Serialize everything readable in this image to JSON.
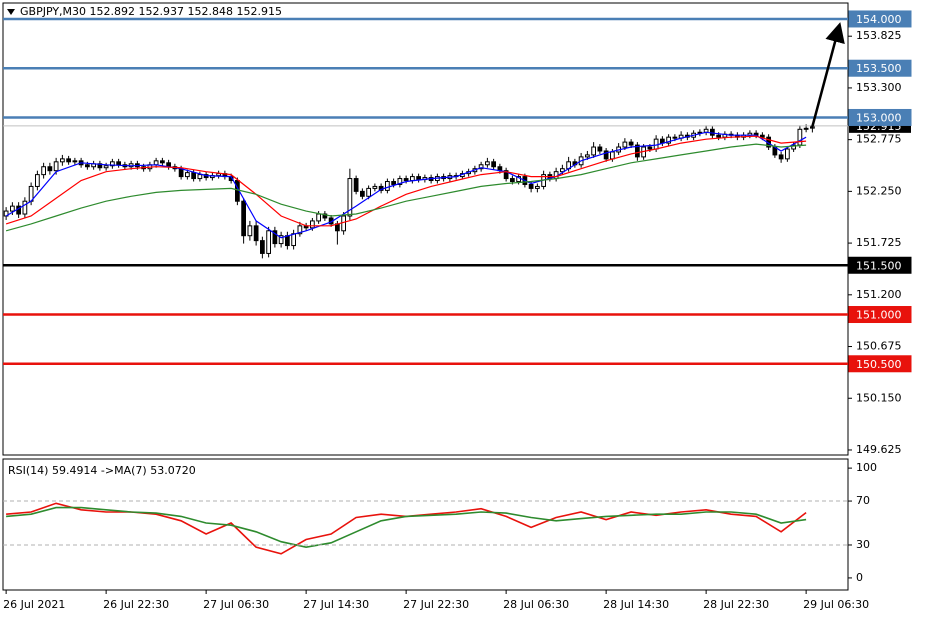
{
  "chart_data": [
    {
      "type": "candlestick",
      "title": "GBPJPY,M30  152.892 152.937 152.848 152.915",
      "xlim": [
        -0.5,
        134.7
      ],
      "ylim": [
        149.574,
        154.162
      ],
      "yticks": [
        153.825,
        {
          "value": 153.3,
          "label": "153.300"
        },
        152.775,
        {
          "value": 152.25,
          "label": "152.250"
        },
        151.725,
        {
          "value": 151.2,
          "label": "151.200"
        },
        150.675,
        {
          "value": 150.15,
          "label": "150.150"
        },
        149.625
      ],
      "open": [
        152.0,
        152.05,
        152.1,
        152.02,
        152.15,
        152.3,
        152.42,
        152.5,
        152.46,
        152.55,
        152.58,
        152.55,
        152.56,
        152.52,
        152.5,
        152.53,
        152.49,
        152.51,
        152.55,
        152.52,
        152.5,
        152.53,
        152.5,
        152.48,
        152.52,
        152.56,
        152.54,
        152.5,
        152.48,
        152.4,
        152.44,
        152.38,
        152.42,
        152.39,
        152.41,
        152.43,
        152.4,
        152.36,
        152.15,
        151.8,
        151.9,
        151.75,
        151.62,
        151.85,
        151.72,
        151.8,
        151.7,
        151.82,
        151.9,
        151.88,
        151.95,
        152.02,
        151.98,
        151.92,
        151.85,
        152.0,
        152.38,
        152.25,
        152.2,
        152.28,
        152.3,
        152.26,
        152.35,
        152.32,
        152.38,
        152.36,
        152.4,
        152.37,
        152.39,
        152.36,
        152.4,
        152.38,
        152.41,
        152.4,
        152.43,
        152.45,
        152.48,
        152.52,
        152.55,
        152.5,
        152.46,
        152.38,
        152.35,
        152.4,
        152.32,
        152.28,
        152.3,
        152.42,
        152.38,
        152.45,
        152.48,
        152.55,
        152.52,
        152.6,
        152.62,
        152.7,
        152.66,
        152.58,
        152.65,
        152.7,
        152.75,
        152.72,
        152.6,
        152.7,
        152.68,
        152.78,
        152.74,
        152.8,
        152.79,
        152.82,
        152.8,
        152.84,
        152.85,
        152.88,
        152.82,
        152.8,
        152.83,
        152.82,
        152.8,
        152.82,
        152.84,
        152.82,
        152.8,
        152.7,
        152.62,
        152.58,
        152.68,
        152.72,
        152.88,
        152.892
      ],
      "high": [
        152.09,
        152.14,
        152.14,
        152.19,
        152.34,
        152.46,
        152.54,
        152.54,
        152.59,
        152.62,
        152.61,
        152.59,
        152.59,
        152.55,
        152.56,
        152.56,
        152.54,
        152.58,
        152.58,
        152.55,
        152.56,
        152.56,
        152.53,
        152.55,
        152.59,
        152.59,
        152.57,
        152.53,
        152.51,
        152.47,
        152.47,
        152.45,
        152.45,
        152.44,
        152.46,
        152.46,
        152.43,
        152.39,
        152.18,
        151.95,
        151.95,
        151.79,
        151.89,
        151.89,
        151.84,
        151.84,
        151.86,
        151.94,
        151.93,
        151.98,
        152.05,
        152.05,
        152.01,
        151.95,
        152.04,
        152.48,
        152.41,
        152.28,
        152.31,
        152.33,
        152.33,
        152.38,
        152.38,
        152.41,
        152.41,
        152.43,
        152.43,
        152.42,
        152.42,
        152.43,
        152.43,
        152.44,
        152.44,
        152.46,
        152.48,
        152.51,
        152.55,
        152.59,
        152.58,
        152.53,
        152.49,
        152.41,
        152.43,
        152.43,
        152.35,
        152.33,
        152.46,
        152.45,
        152.49,
        152.52,
        152.6,
        152.58,
        152.64,
        152.66,
        152.75,
        152.73,
        152.69,
        152.68,
        152.74,
        152.79,
        152.78,
        152.75,
        152.73,
        152.73,
        152.82,
        152.81,
        152.83,
        152.83,
        152.86,
        152.85,
        152.87,
        152.88,
        152.92,
        152.91,
        152.85,
        152.86,
        152.86,
        152.85,
        152.85,
        152.87,
        152.87,
        152.85,
        152.83,
        152.73,
        152.65,
        152.71,
        152.75,
        152.92,
        152.93,
        152.937
      ],
      "low": [
        151.96,
        152.01,
        151.98,
        151.98,
        152.11,
        152.26,
        152.38,
        152.42,
        152.42,
        152.51,
        152.52,
        152.52,
        152.49,
        152.47,
        152.47,
        152.46,
        152.46,
        152.48,
        152.49,
        152.47,
        152.47,
        152.47,
        152.45,
        152.45,
        152.49,
        152.51,
        152.47,
        152.45,
        152.37,
        152.37,
        152.35,
        152.35,
        152.36,
        152.36,
        152.38,
        152.37,
        152.33,
        152.11,
        151.72,
        151.75,
        151.7,
        151.57,
        151.58,
        151.68,
        151.68,
        151.66,
        151.66,
        151.79,
        151.85,
        151.85,
        151.92,
        151.95,
        151.89,
        151.71,
        151.81,
        151.96,
        152.22,
        152.17,
        152.17,
        152.25,
        152.23,
        152.23,
        152.29,
        152.29,
        152.33,
        152.33,
        152.34,
        152.34,
        152.33,
        152.33,
        152.35,
        152.35,
        152.37,
        152.37,
        152.4,
        152.42,
        152.45,
        152.49,
        152.47,
        152.43,
        152.35,
        152.32,
        152.32,
        152.29,
        152.24,
        152.24,
        152.27,
        152.35,
        152.35,
        152.42,
        152.45,
        152.49,
        152.49,
        152.57,
        152.59,
        152.63,
        152.55,
        152.55,
        152.62,
        152.67,
        152.69,
        152.56,
        152.57,
        152.65,
        152.65,
        152.71,
        152.71,
        152.76,
        152.76,
        152.77,
        152.77,
        152.81,
        152.82,
        152.79,
        152.77,
        152.77,
        152.79,
        152.77,
        152.77,
        152.79,
        152.79,
        152.77,
        152.67,
        152.59,
        152.54,
        152.55,
        152.65,
        152.69,
        152.85,
        152.848
      ],
      "close": [
        152.05,
        152.1,
        152.02,
        152.15,
        152.3,
        152.42,
        152.5,
        152.46,
        152.55,
        152.58,
        152.55,
        152.56,
        152.52,
        152.5,
        152.53,
        152.49,
        152.51,
        152.55,
        152.52,
        152.5,
        152.53,
        152.5,
        152.48,
        152.52,
        152.56,
        152.54,
        152.5,
        152.48,
        152.4,
        152.44,
        152.38,
        152.42,
        152.39,
        152.41,
        152.43,
        152.4,
        152.36,
        152.15,
        151.8,
        151.9,
        151.75,
        151.62,
        151.85,
        151.72,
        151.8,
        151.7,
        151.82,
        151.9,
        151.88,
        151.95,
        152.02,
        151.98,
        151.92,
        151.85,
        152.0,
        152.38,
        152.25,
        152.2,
        152.28,
        152.3,
        152.26,
        152.35,
        152.32,
        152.38,
        152.36,
        152.4,
        152.37,
        152.39,
        152.36,
        152.4,
        152.38,
        152.41,
        152.4,
        152.43,
        152.45,
        152.48,
        152.52,
        152.55,
        152.5,
        152.46,
        152.38,
        152.35,
        152.4,
        152.32,
        152.28,
        152.3,
        152.42,
        152.38,
        152.45,
        152.48,
        152.55,
        152.52,
        152.6,
        152.62,
        152.7,
        152.66,
        152.58,
        152.65,
        152.7,
        152.75,
        152.72,
        152.6,
        152.7,
        152.68,
        152.78,
        152.74,
        152.8,
        152.79,
        152.82,
        152.8,
        152.84,
        152.85,
        152.88,
        152.82,
        152.8,
        152.83,
        152.82,
        152.8,
        152.82,
        152.84,
        152.82,
        152.8,
        152.7,
        152.62,
        152.58,
        152.68,
        152.72,
        152.88,
        152.89,
        152.915
      ],
      "up_color": "#ffffff",
      "down_color": "#000000",
      "series": [
        {
          "color": "#0000ff",
          "x": [
            0,
            4,
            8,
            12,
            16,
            20,
            24,
            28,
            32,
            36,
            40,
            44,
            48,
            52,
            56,
            60,
            64,
            68,
            72,
            76,
            80,
            84,
            88,
            92,
            96,
            100,
            104,
            108,
            112,
            116,
            120,
            124,
            128
          ],
          "values": [
            152.0,
            152.15,
            152.45,
            152.54,
            152.52,
            152.51,
            152.52,
            152.48,
            152.41,
            152.4,
            151.95,
            151.78,
            151.85,
            151.94,
            152.1,
            152.27,
            152.35,
            152.38,
            152.4,
            152.49,
            152.45,
            152.33,
            152.4,
            152.56,
            152.64,
            152.7,
            152.72,
            152.79,
            152.85,
            152.82,
            152.82,
            152.66,
            152.8
          ]
        },
        {
          "color": "#ff0000",
          "x": [
            0,
            4,
            8,
            12,
            16,
            20,
            24,
            28,
            32,
            36,
            40,
            44,
            48,
            52,
            56,
            60,
            64,
            68,
            72,
            76,
            80,
            84,
            88,
            92,
            96,
            100,
            104,
            108,
            112,
            116,
            120,
            124,
            128
          ],
          "values": [
            151.92,
            152.0,
            152.18,
            152.36,
            152.45,
            152.48,
            152.5,
            152.49,
            152.45,
            152.42,
            152.22,
            152.0,
            151.9,
            151.9,
            151.97,
            152.1,
            152.22,
            152.3,
            152.36,
            152.42,
            152.45,
            152.4,
            152.4,
            152.48,
            152.56,
            152.63,
            152.68,
            152.74,
            152.78,
            152.8,
            152.81,
            152.74,
            152.76
          ]
        },
        {
          "color": "#2e8b2e",
          "x": [
            0,
            4,
            8,
            12,
            16,
            20,
            24,
            28,
            32,
            36,
            40,
            44,
            48,
            52,
            56,
            60,
            64,
            68,
            72,
            76,
            80,
            84,
            88,
            92,
            96,
            100,
            104,
            108,
            112,
            116,
            120,
            124,
            128
          ],
          "values": [
            151.85,
            151.92,
            152.0,
            152.08,
            152.15,
            152.2,
            152.24,
            152.26,
            152.27,
            152.28,
            152.22,
            152.12,
            152.05,
            152.0,
            152.02,
            152.08,
            152.15,
            152.2,
            152.25,
            152.3,
            152.33,
            152.35,
            152.38,
            152.42,
            152.48,
            152.54,
            152.58,
            152.62,
            152.66,
            152.7,
            152.73,
            152.7,
            152.72
          ]
        }
      ],
      "levels": [
        {
          "value": 154,
          "label": "154.000",
          "color": "#4a7fb5"
        },
        {
          "value": 153.5,
          "label": "153.500",
          "color": "#4a7fb5"
        },
        {
          "value": 153,
          "label": "153.000",
          "color": "#4a7fb5"
        },
        {
          "value": 151.5,
          "label": "151.500",
          "color": "#000000"
        },
        {
          "value": 151,
          "label": "151.000",
          "color": "#e8120c"
        },
        {
          "value": 150.5,
          "label": "150.500",
          "color": "#e8120c"
        }
      ],
      "last_price": 152.915
    },
    {
      "type": "line",
      "title": "RSI(14) 59.4914  ->MA(7) 53.0720",
      "xlim": [
        -0.5,
        134.7
      ],
      "ylim": [
        -11,
        108.3
      ],
      "yticks": [
        0,
        30,
        70,
        100
      ],
      "levels": [
        30,
        70
      ],
      "xticks": [
        {
          "value": 0,
          "label": "26 Jul 2021"
        },
        {
          "value": 16,
          "label": "26 Jul 22:30"
        },
        {
          "value": 32,
          "label": "27 Jul 06:30"
        },
        {
          "value": 48,
          "label": "27 Jul 14:30"
        },
        {
          "value": 64,
          "label": "27 Jul 22:30"
        },
        {
          "value": 80,
          "label": "28 Jul 06:30"
        },
        {
          "value": 96,
          "label": "28 Jul 14:30"
        },
        {
          "value": 112,
          "label": "28 Jul 22:30"
        },
        {
          "value": 128,
          "label": "29 Jul 06:30"
        }
      ],
      "series": [
        {
          "color": "#e8120c",
          "x": [
            0,
            4,
            8,
            12,
            16,
            20,
            24,
            28,
            32,
            36,
            40,
            44,
            48,
            52,
            56,
            60,
            64,
            68,
            72,
            76,
            80,
            84,
            88,
            92,
            96,
            100,
            104,
            108,
            112,
            116,
            120,
            124,
            128
          ],
          "values": [
            58,
            60,
            68,
            62,
            60,
            60,
            58,
            52,
            40,
            50,
            28,
            22,
            35,
            40,
            55,
            58,
            56,
            58,
            60,
            63,
            56,
            46,
            55,
            60,
            53,
            60,
            57,
            60,
            62,
            58,
            56,
            42,
            59.4914
          ]
        },
        {
          "color": "#2e8b2e",
          "x": [
            0,
            4,
            8,
            12,
            16,
            20,
            24,
            28,
            32,
            36,
            40,
            44,
            48,
            52,
            56,
            60,
            64,
            68,
            72,
            76,
            80,
            84,
            88,
            92,
            96,
            100,
            104,
            108,
            112,
            116,
            120,
            124,
            128
          ],
          "values": [
            56,
            58,
            64,
            64,
            62,
            60,
            59,
            56,
            50,
            48,
            42,
            33,
            28,
            32,
            42,
            52,
            56,
            57,
            58,
            60,
            59,
            55,
            52,
            54,
            56,
            57,
            58,
            58,
            60,
            60,
            58,
            50,
            53.072
          ]
        }
      ]
    }
  ]
}
